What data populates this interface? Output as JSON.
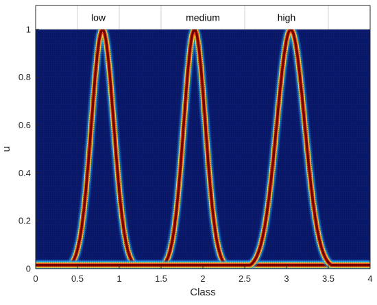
{
  "chart_data": {
    "type": "heatmap",
    "title": "",
    "xlabel": "Class",
    "ylabel": "u",
    "xlim": [
      0,
      4
    ],
    "ylim": [
      0,
      1.1
    ],
    "x_ticks": [
      0,
      0.5,
      1,
      1.5,
      2,
      2.5,
      3,
      3.5,
      4
    ],
    "x_tick_labels": [
      "0",
      "0.5",
      "1",
      "1.5",
      "2",
      "2.5",
      "3",
      "3.5",
      "4"
    ],
    "y_ticks": [
      0,
      0.2,
      0.4,
      0.6,
      0.8,
      1
    ],
    "y_tick_labels": [
      "0",
      "0.2",
      "0.4",
      "0.6",
      "0.8",
      "1"
    ],
    "colormap": "jet",
    "background_color": "#0a1a6e",
    "grid": false,
    "band_labels": [
      {
        "text": "low",
        "x_range": [
          0.5,
          1.0
        ]
      },
      {
        "text": "medium",
        "x_range": [
          1.5,
          2.5
        ]
      },
      {
        "text": "high",
        "x_range": [
          2.5,
          3.5
        ]
      }
    ],
    "series": [
      {
        "label": "low",
        "center": 0.8,
        "width": 0.28
      },
      {
        "label": "medium",
        "center": 1.9,
        "width": 0.27
      },
      {
        "label": "high",
        "center": 3.05,
        "width": 0.35
      }
    ],
    "floor_value": 0.015
  }
}
